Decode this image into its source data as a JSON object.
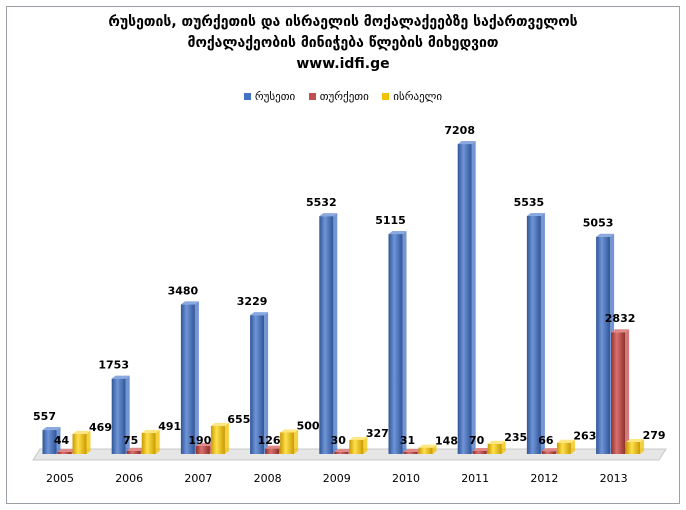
{
  "chart_data": {
    "type": "bar",
    "title_lines": [
      "რუსეთის, თურქეთის და ისრაელის მოქალაქეებზე საქართველოს",
      "მოქალაქეობის მინიჭება წლების მიხედვით",
      "www.idfi.ge"
    ],
    "categories": [
      "2005",
      "2006",
      "2007",
      "2008",
      "2009",
      "2010",
      "2011",
      "2012",
      "2013"
    ],
    "series": [
      {
        "name": "რუსეთი",
        "color": "#4472c4",
        "values": [
          557,
          1753,
          3480,
          3229,
          5532,
          5115,
          7208,
          5535,
          5053
        ]
      },
      {
        "name": "თურქეთი",
        "color": "#c0504d",
        "values": [
          44,
          75,
          190,
          126,
          30,
          31,
          70,
          66,
          2832
        ]
      },
      {
        "name": "ისრაელი",
        "color": "#f2c200",
        "values": [
          469,
          491,
          655,
          500,
          327,
          148,
          235,
          263,
          279
        ]
      }
    ],
    "ylim": [
      0,
      8000
    ],
    "grid": false,
    "legend": "top",
    "data_labels": true
  }
}
